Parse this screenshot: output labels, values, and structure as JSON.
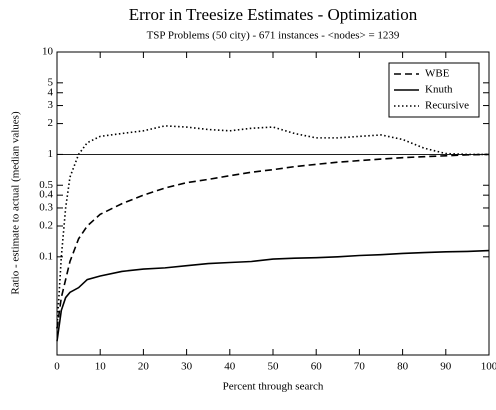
{
  "chart_data": {
    "type": "line",
    "title": "Error in Treesize Estimates - Optimization",
    "subtitle": "TSP Problems (50 city) - 671 instances - <nodes> = 1239",
    "x_label": "Percent through search",
    "y_label": "Ratio - estimate to actual (median values)",
    "x": [
      0,
      1,
      2,
      3,
      5,
      7,
      10,
      15,
      20,
      25,
      30,
      35,
      40,
      45,
      50,
      55,
      60,
      65,
      70,
      75,
      80,
      85,
      90,
      95,
      100
    ],
    "series": [
      {
        "name": "WBE",
        "color": "#000000",
        "dash": "dashed",
        "values": [
          0.02,
          0.04,
          0.06,
          0.09,
          0.15,
          0.2,
          0.26,
          0.33,
          0.4,
          0.47,
          0.53,
          0.57,
          0.62,
          0.67,
          0.71,
          0.76,
          0.8,
          0.84,
          0.87,
          0.9,
          0.93,
          0.95,
          0.97,
          0.99,
          1.0
        ]
      },
      {
        "name": "Knuth",
        "color": "#000000",
        "dash": "solid",
        "values": [
          0.015,
          0.03,
          0.04,
          0.045,
          0.05,
          0.06,
          0.065,
          0.072,
          0.076,
          0.078,
          0.082,
          0.086,
          0.088,
          0.09,
          0.095,
          0.097,
          0.098,
          0.1,
          0.103,
          0.105,
          0.108,
          0.11,
          0.112,
          0.113,
          0.115
        ]
      },
      {
        "name": "Recursive",
        "color": "#000000",
        "dash": "dotted",
        "values": [
          0.02,
          0.1,
          0.3,
          0.6,
          1.0,
          1.3,
          1.5,
          1.6,
          1.7,
          1.9,
          1.85,
          1.75,
          1.7,
          1.8,
          1.85,
          1.6,
          1.45,
          1.45,
          1.5,
          1.55,
          1.4,
          1.15,
          1.02,
          1.0,
          1.0
        ]
      }
    ],
    "xlim": [
      0,
      100
    ],
    "xticks": [
      0,
      10,
      20,
      30,
      40,
      50,
      60,
      70,
      80,
      90,
      100
    ],
    "ylim": [
      0.011,
      10
    ],
    "yticks": [
      0.1,
      0.2,
      0.3,
      0.4,
      0.5,
      1,
      2,
      3,
      4,
      5,
      10
    ],
    "y_scale": "log",
    "reference_line": 1,
    "legend": "top-right"
  }
}
